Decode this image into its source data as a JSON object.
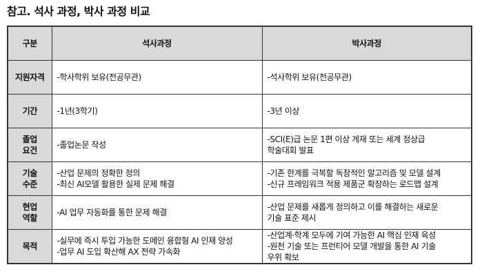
{
  "title": "참고. 석사 과정, 박사 과정 비교",
  "table": {
    "headers": [
      "구분",
      "석사과정",
      "박사과정"
    ],
    "rows": [
      {
        "label": [
          "지원자격"
        ],
        "master": [
          "-학사학위 보유(전공무관)"
        ],
        "phd": [
          "-석사학위 보유(전공무관)"
        ]
      },
      {
        "label": [
          "기간"
        ],
        "master": [
          "-1년(3학기)"
        ],
        "phd": [
          "-3년 이상"
        ]
      },
      {
        "label": [
          "졸업",
          "요건"
        ],
        "master": [
          "-졸업논문 작성"
        ],
        "phd": [
          "-SCI(E)급 논문 1편 이상 게재 또는 세계 정상급",
          "학술대회 발표"
        ]
      },
      {
        "label": [
          "기술",
          "수준"
        ],
        "master": [
          "-산업 문제의 정확한 정의",
          "-최신 AI모델 활용한 실제 문제 해결"
        ],
        "phd": [
          "-기존 한계를 극복할 독창적인 알고리즘 및 모델 설계",
          "-신규 프레임워크 적용 제품군 확장하는 로드맵 설계"
        ]
      },
      {
        "label": [
          "현업",
          "역할"
        ],
        "master": [
          "-AI 업무 자동화를 통한 문제 해결"
        ],
        "phd": [
          "-산업 문제를 새롭게 정의하고 이를 해결하는 새로운",
          "기술 표준 제시"
        ]
      },
      {
        "label": [
          "목적"
        ],
        "master": [
          "-실무에 즉시 투입 가능한 도메인 융합형 AI 인재 양성",
          "-업무 AI 도입 확산해 AX 전략 가속화"
        ],
        "phd": [
          "-산업계·학계 모두에 기여 가능한 AI 핵심 인재 육성",
          "-원천 기술 또는 프런티어 모델 개발을 통한 AI 기술",
          "우위 확보"
        ]
      }
    ]
  }
}
